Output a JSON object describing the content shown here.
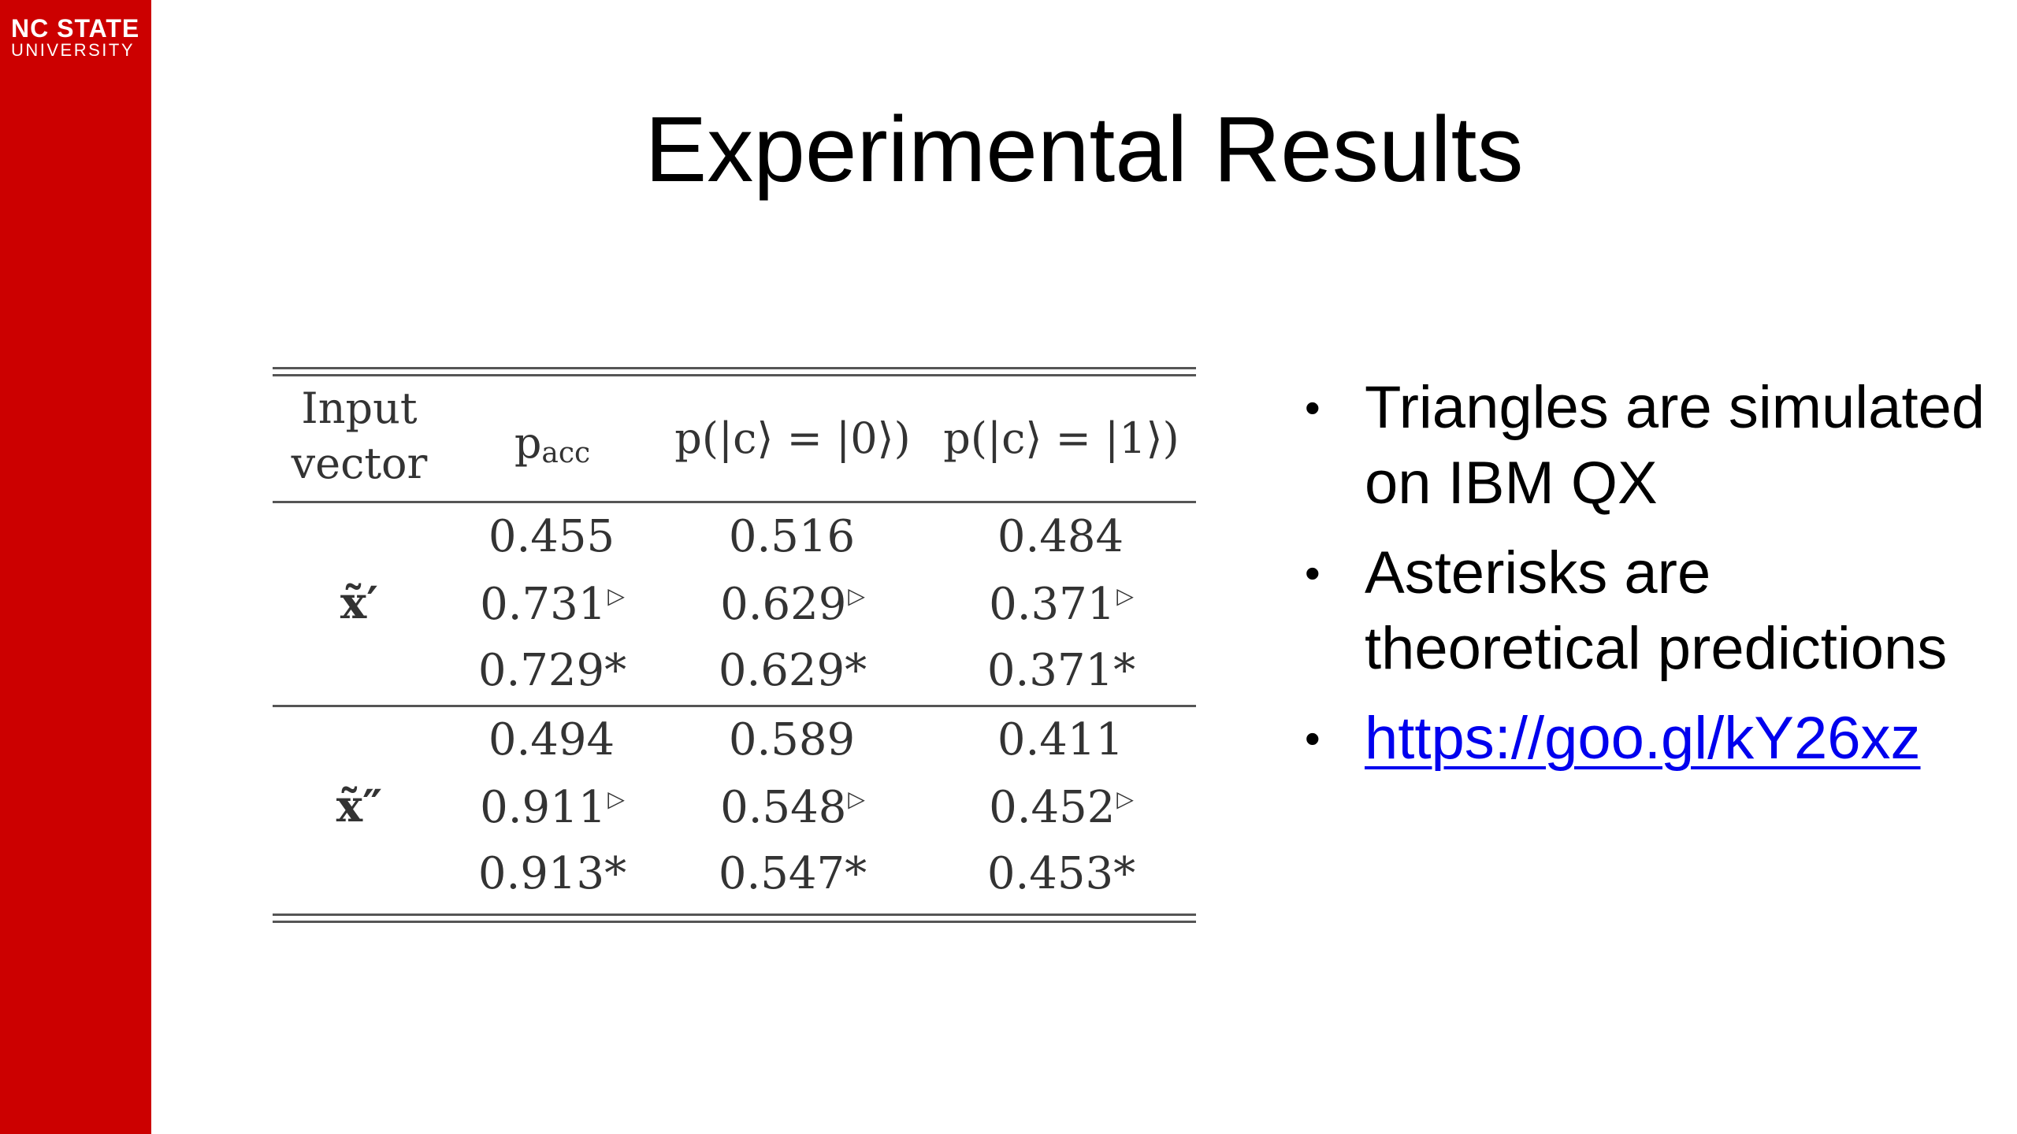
{
  "logo": {
    "line1": "NC STATE",
    "line2": "UNIVERSITY"
  },
  "title": "Experimental Results",
  "table": {
    "headers": {
      "input_line1": "Input",
      "input_line2": "vector",
      "pacc_main": "p",
      "pacc_sub": "acc",
      "p0": "p(|c⟩ = |0⟩)",
      "p1": "p(|c⟩ = |1⟩)"
    },
    "groups": [
      {
        "label": "x̃′",
        "rows": [
          {
            "pacc": "0.455",
            "pacc_mark": "",
            "p0": "0.516",
            "p0_mark": "",
            "p1": "0.484",
            "p1_mark": ""
          },
          {
            "pacc": "0.731",
            "pacc_mark": "▷",
            "p0": "0.629",
            "p0_mark": "▷",
            "p1": "0.371",
            "p1_mark": "▷"
          },
          {
            "pacc": "0.729",
            "pacc_mark": "*",
            "p0": "0.629",
            "p0_mark": "*",
            "p1": "0.371",
            "p1_mark": "*"
          }
        ]
      },
      {
        "label": "x̃″",
        "rows": [
          {
            "pacc": "0.494",
            "pacc_mark": "",
            "p0": "0.589",
            "p0_mark": "",
            "p1": "0.411",
            "p1_mark": ""
          },
          {
            "pacc": "0.911",
            "pacc_mark": "▷",
            "p0": "0.548",
            "p0_mark": "▷",
            "p1": "0.452",
            "p1_mark": "▷"
          },
          {
            "pacc": "0.913",
            "pacc_mark": "*",
            "p0": "0.547",
            "p0_mark": "*",
            "p1": "0.453",
            "p1_mark": "*"
          }
        ]
      }
    ]
  },
  "bullets": [
    {
      "text": "Triangles are simulated on IBM QX",
      "link": false
    },
    {
      "text": "Asterisks are theoretical predictions",
      "link": false
    },
    {
      "text": "https://goo.gl/kY26xz",
      "link": true
    }
  ],
  "bullet_char": "•",
  "colors": {
    "sidebar": "#cc0000",
    "link": "#0000ee"
  }
}
